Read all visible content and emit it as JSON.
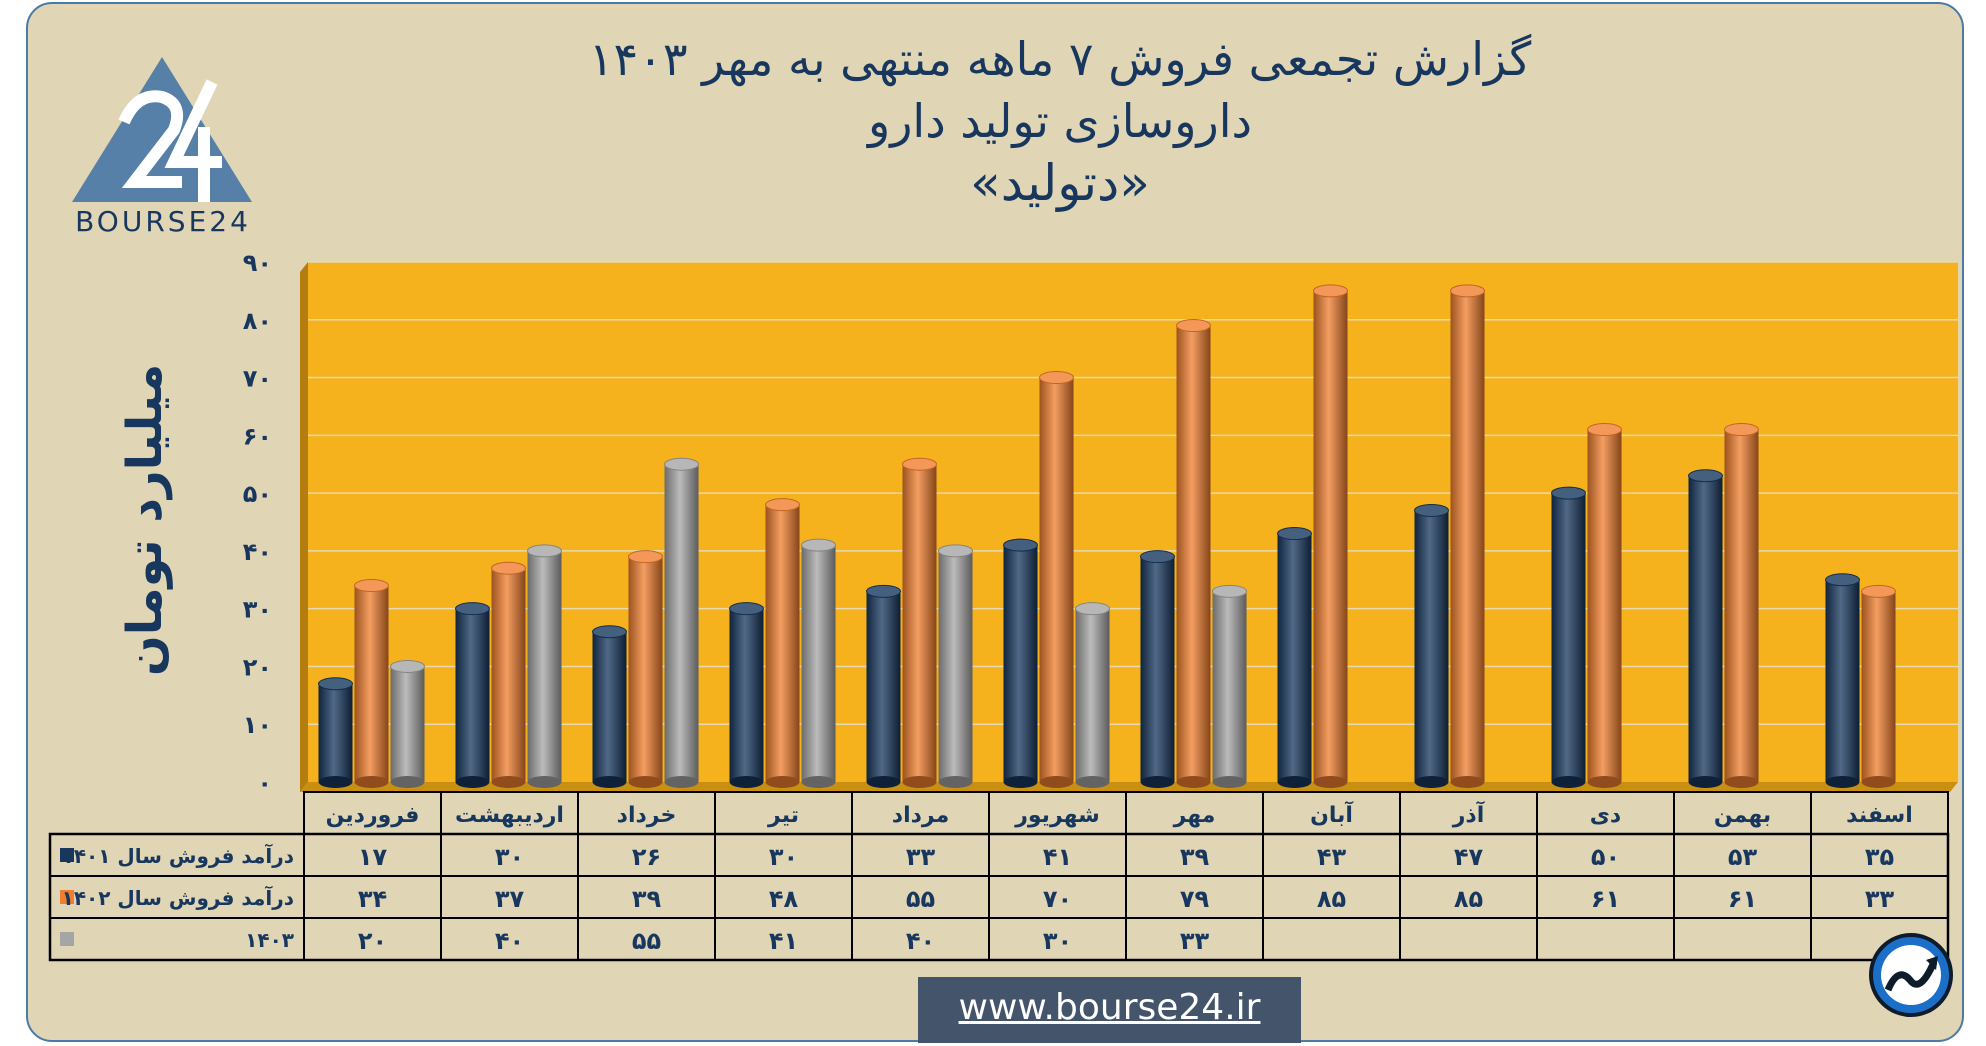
{
  "header": {
    "title_line1": "گزارش تجمعی فروش ۷ ماهه منتهی به مهر ۱۴۰۳",
    "title_line2": "داروسازی تولید دارو",
    "title_line3": "«دتولید»"
  },
  "logo": {
    "icon": "bourse24-logo-icon",
    "text": "BOURSE24"
  },
  "footer": {
    "url": "www.bourse24.ir",
    "badge_icon": "trend-arrow-icon"
  },
  "chart_data": {
    "type": "bar",
    "ylabel": "میلیارد تومان",
    "ylim": [
      0,
      90
    ],
    "yticks": [
      0,
      10,
      20,
      30,
      40,
      50,
      60,
      70,
      80,
      90
    ],
    "ytick_labels": [
      "۰",
      "۱۰",
      "۲۰",
      "۳۰",
      "۴۰",
      "۵۰",
      "۶۰",
      "۷۰",
      "۸۰",
      "۹۰"
    ],
    "grid": true,
    "plot_background": "#f5b21c",
    "categories": [
      "فروردین",
      "اردیبهشت",
      "خرداد",
      "تیر",
      "مرداد",
      "شهریور",
      "مهر",
      "آبان",
      "آذر",
      "دی",
      "بهمن",
      "اسفند"
    ],
    "series": [
      {
        "name": "درآمد فروش سال ۱۴۰۱",
        "color": "#17375e",
        "values": [
          17,
          30,
          26,
          30,
          33,
          41,
          39,
          43,
          47,
          50,
          53,
          35
        ],
        "labels": [
          "۱۷",
          "۳۰",
          "۲۶",
          "۳۰",
          "۳۳",
          "۴۱",
          "۳۹",
          "۴۳",
          "۴۷",
          "۵۰",
          "۵۳",
          "۳۵"
        ]
      },
      {
        "name": "درآمد فروش سال ۱۴۰۲",
        "color": "#f07e2e",
        "values": [
          34,
          37,
          39,
          48,
          55,
          70,
          79,
          85,
          85,
          61,
          61,
          33
        ],
        "labels": [
          "۳۴",
          "۳۷",
          "۳۹",
          "۴۸",
          "۵۵",
          "۷۰",
          "۷۹",
          "۸۵",
          "۸۵",
          "۶۱",
          "۶۱",
          "۳۳"
        ]
      },
      {
        "name": "۱۴۰۳",
        "color": "#a5a5a5",
        "values": [
          20,
          40,
          55,
          41,
          40,
          30,
          33,
          null,
          null,
          null,
          null,
          null
        ],
        "labels": [
          "۲۰",
          "۴۰",
          "۵۵",
          "۴۱",
          "۴۰",
          "۳۰",
          "۳۳",
          "",
          "",
          "",
          "",
          ""
        ]
      }
    ],
    "legend_placement": "table-left"
  }
}
